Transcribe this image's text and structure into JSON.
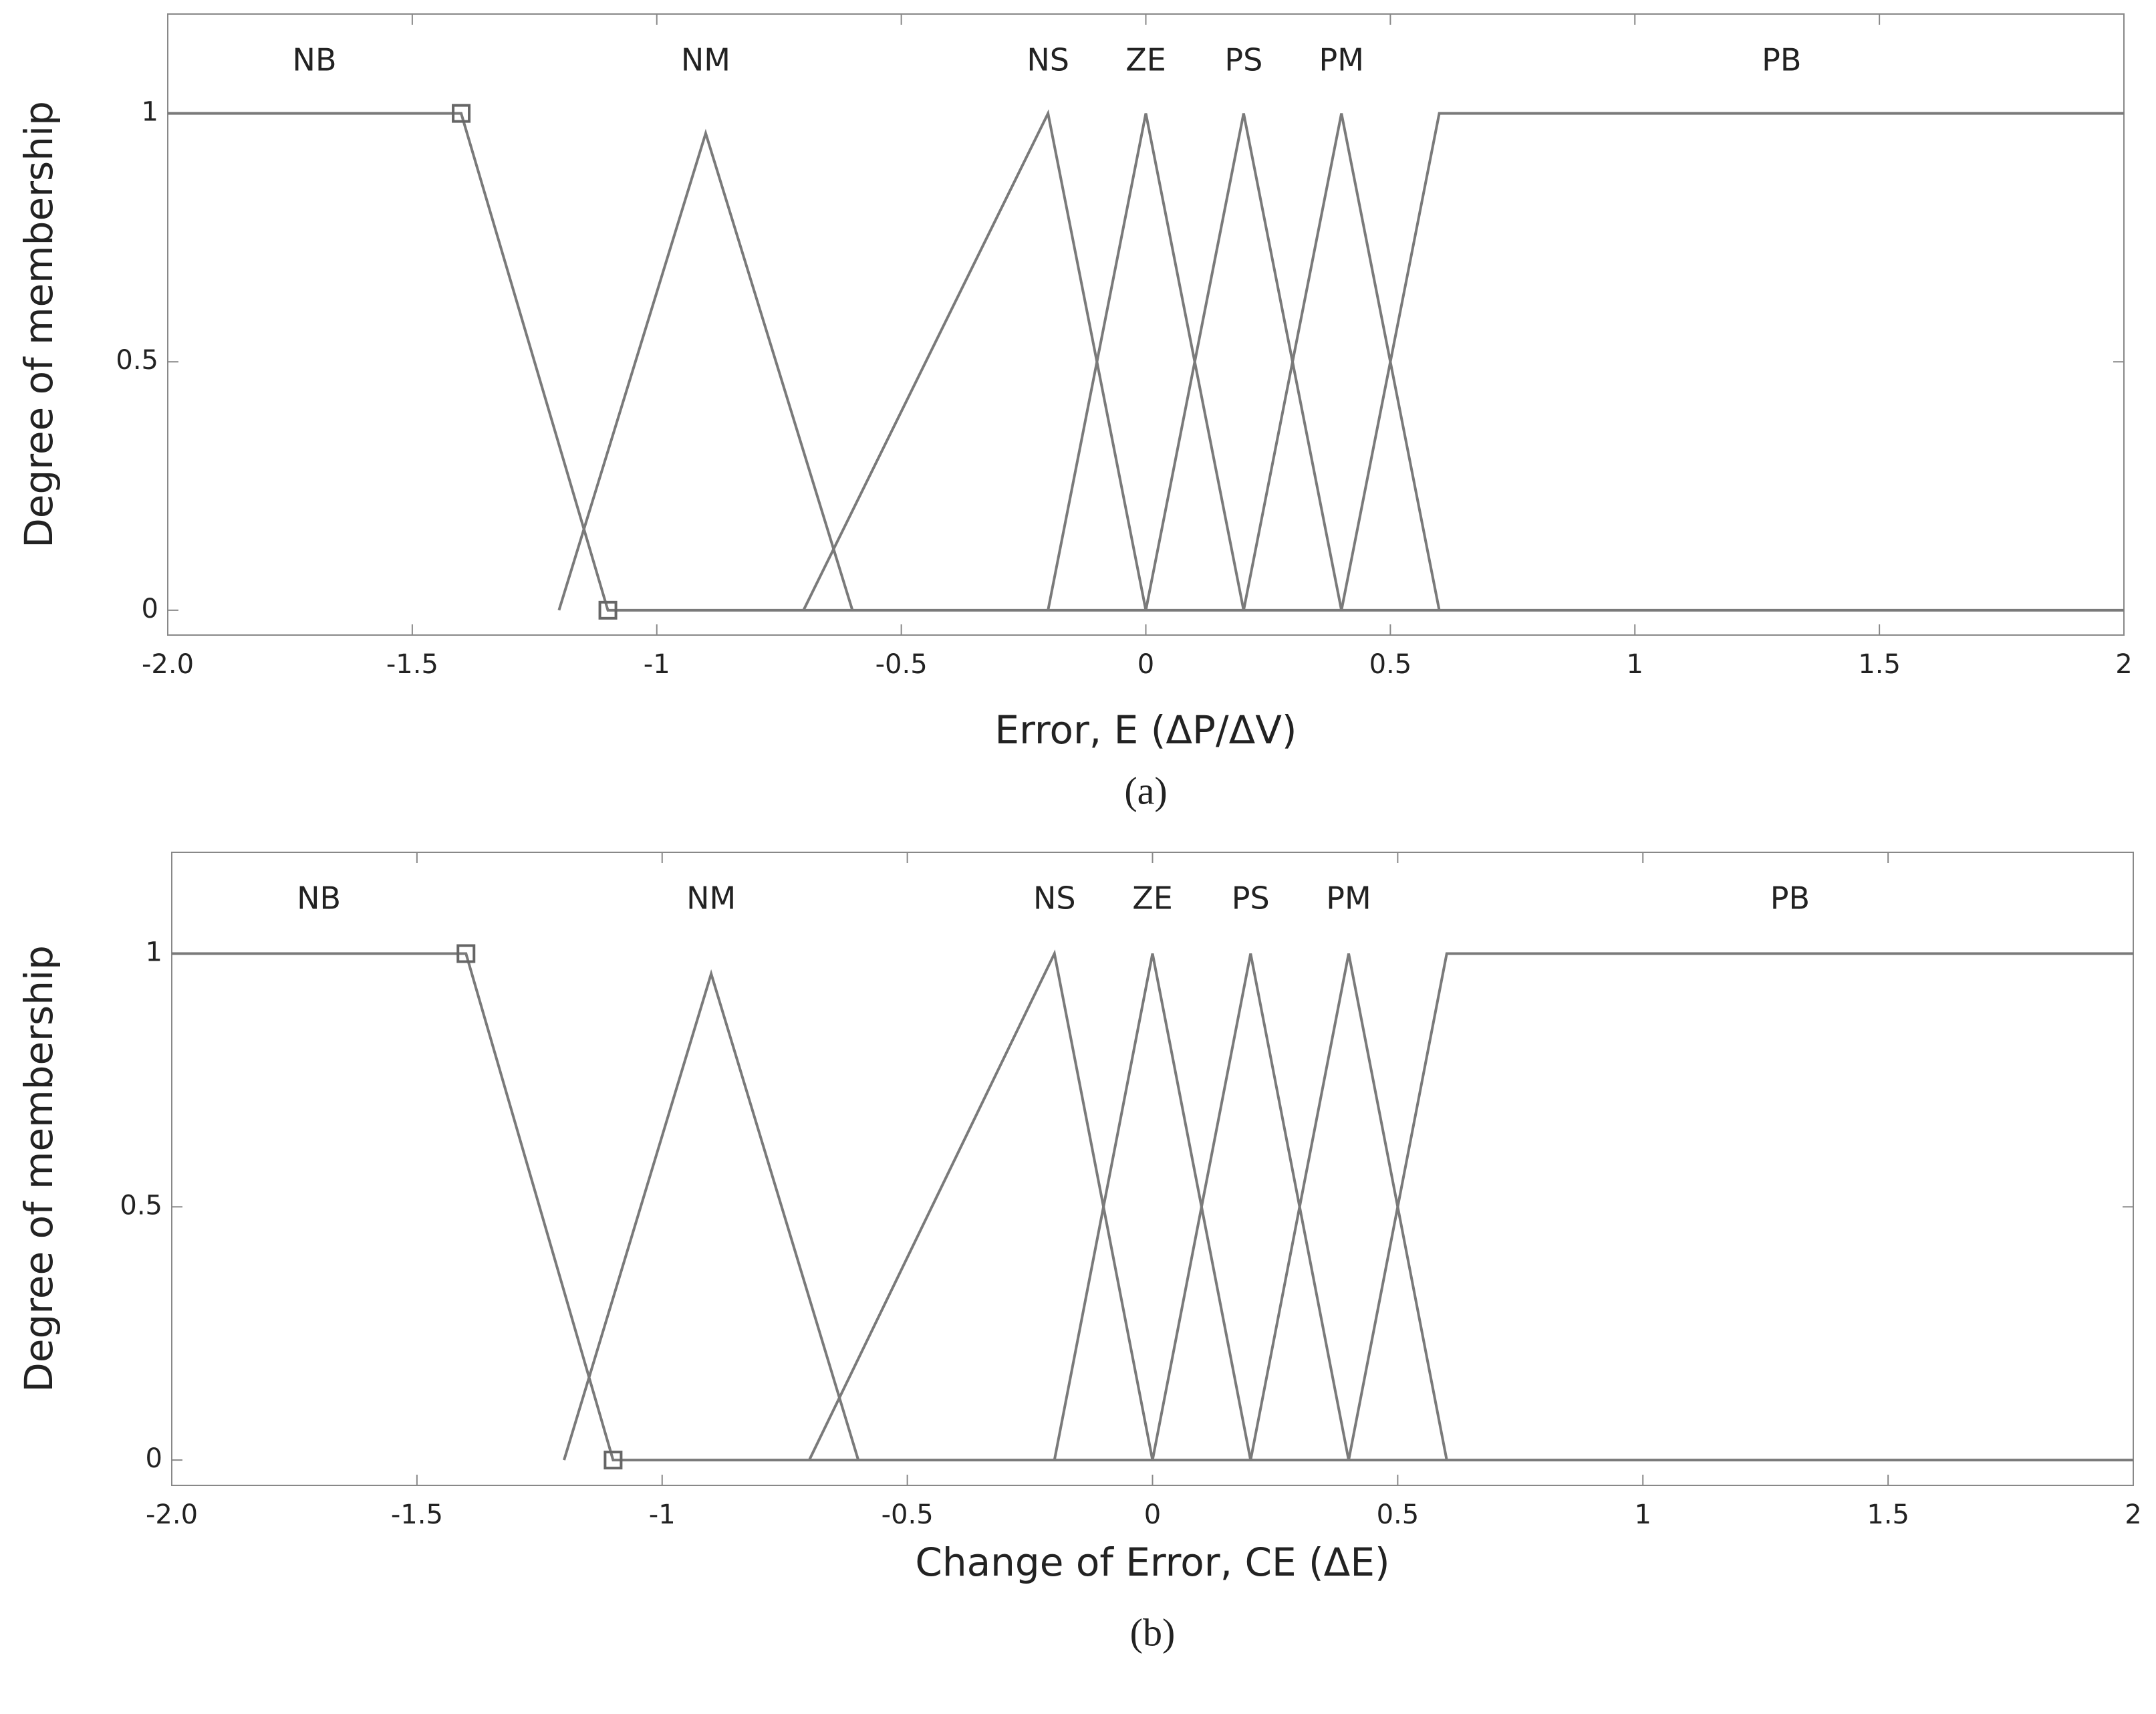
{
  "chart_data": [
    {
      "type": "line",
      "caption": "(a)",
      "xlabel": "Error, E (ΔP/ΔV)",
      "ylabel": "Degree of membership",
      "xlim": [
        -2,
        2
      ],
      "ylim": [
        -0.05,
        1.2
      ],
      "xticks": [
        {
          "value": -2,
          "label": "-2.0"
        },
        -1.5,
        -1,
        -0.5,
        0,
        0.5,
        1,
        1.5,
        2
      ],
      "yticks": [
        0,
        0.5,
        1
      ],
      "color": "#7a7a7a",
      "series": [
        {
          "name": "NB",
          "x": [
            -2,
            -1.4,
            -1.1,
            2
          ],
          "values": [
            1,
            1,
            0,
            0
          ],
          "marker": "square"
        },
        {
          "name": "NM",
          "x": [
            -1.2,
            -0.9,
            -0.6
          ],
          "values": [
            0,
            0.96,
            0
          ]
        },
        {
          "name": "NS",
          "x": [
            -0.7,
            -0.2,
            0
          ],
          "values": [
            0,
            1,
            0
          ]
        },
        {
          "name": "ZE",
          "x": [
            -0.2,
            0,
            0.2
          ],
          "values": [
            0,
            1,
            0
          ]
        },
        {
          "name": "PS",
          "x": [
            0,
            0.2,
            0.4
          ],
          "values": [
            0,
            1,
            0
          ]
        },
        {
          "name": "PM",
          "x": [
            0.2,
            0.4,
            0.6
          ],
          "values": [
            0,
            1,
            0
          ]
        },
        {
          "name": "PB",
          "x": [
            0.4,
            0.6,
            2
          ],
          "values": [
            0,
            1,
            1
          ]
        }
      ]
    },
    {
      "type": "line",
      "caption": "(b)",
      "xlabel": "Change of Error, CE (ΔE)",
      "ylabel": "Degree of membership",
      "xlim": [
        -2,
        2
      ],
      "ylim": [
        -0.05,
        1.2
      ],
      "xticks": [
        {
          "value": -2,
          "label": "-2.0"
        },
        -1.5,
        -1,
        -0.5,
        0,
        0.5,
        1,
        1.5,
        2
      ],
      "yticks": [
        0,
        0.5,
        1
      ],
      "color": "#7a7a7a",
      "series": [
        {
          "name": "NB",
          "x": [
            -2,
            -1.4,
            -1.1,
            2
          ],
          "values": [
            1,
            1,
            0,
            0
          ],
          "marker": "square"
        },
        {
          "name": "NM",
          "x": [
            -1.2,
            -0.9,
            -0.6
          ],
          "values": [
            0,
            0.96,
            0
          ]
        },
        {
          "name": "NS",
          "x": [
            -0.7,
            -0.2,
            0
          ],
          "values": [
            0,
            1,
            0
          ]
        },
        {
          "name": "ZE",
          "x": [
            -0.2,
            0,
            0.2
          ],
          "values": [
            0,
            1,
            0
          ]
        },
        {
          "name": "PS",
          "x": [
            0,
            0.2,
            0.4
          ],
          "values": [
            0,
            1,
            0
          ]
        },
        {
          "name": "PM",
          "x": [
            0.2,
            0.4,
            0.6
          ],
          "values": [
            0,
            1,
            0
          ]
        },
        {
          "name": "PB",
          "x": [
            0.4,
            0.6,
            2
          ],
          "values": [
            0,
            1,
            1
          ]
        }
      ]
    }
  ]
}
